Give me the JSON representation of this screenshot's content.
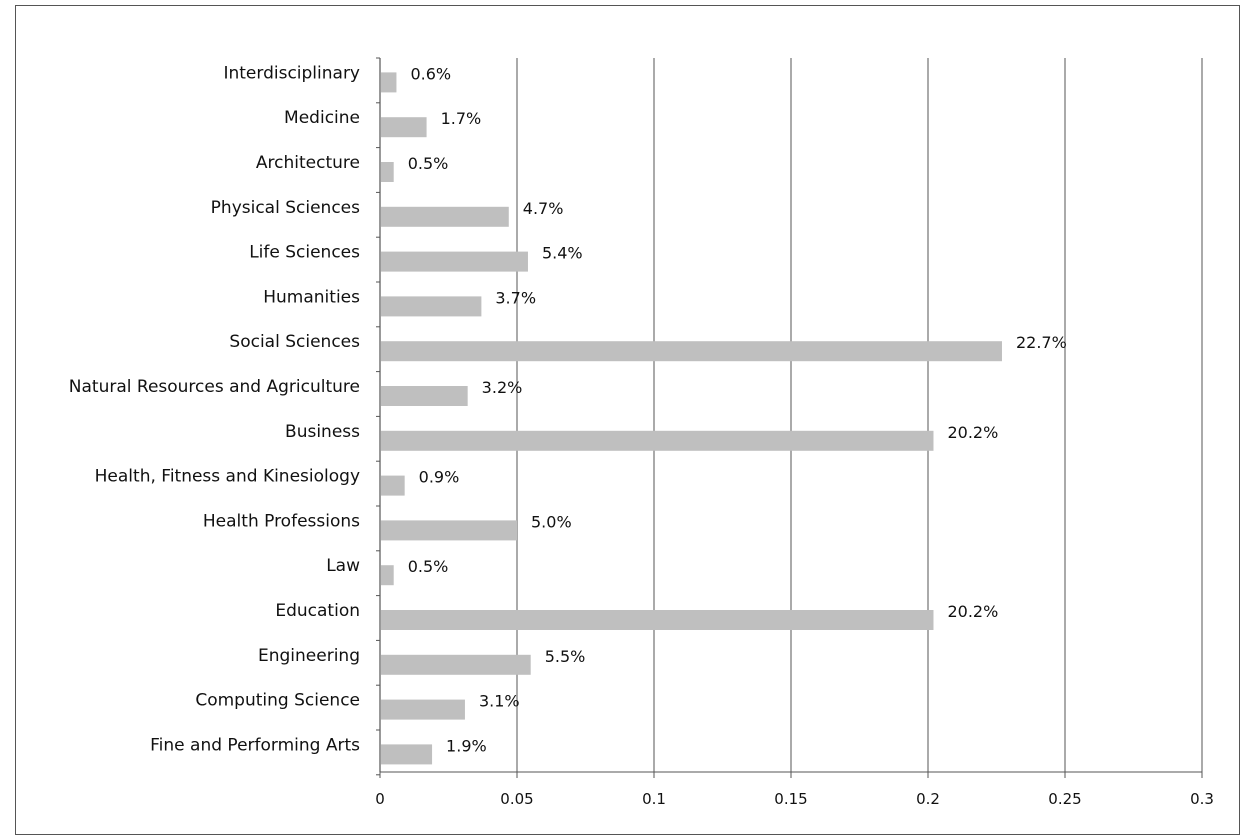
{
  "chart_data": {
    "type": "bar",
    "orientation": "horizontal",
    "title": "",
    "xlabel": "",
    "ylabel": "",
    "xlim": [
      0,
      0.3
    ],
    "x_ticks": [
      0,
      0.05,
      0.1,
      0.15,
      0.2,
      0.25,
      0.3
    ],
    "x_tick_labels": [
      "0",
      "0.05",
      "0.1",
      "0.15",
      "0.2",
      "0.25",
      "0.3"
    ],
    "grid": "vertical",
    "bar_color": "#bfbfbf",
    "categories": [
      "Interdisciplinary",
      "Medicine",
      "Architecture",
      "Physical Sciences",
      "Life Sciences",
      "Humanities",
      "Social Sciences",
      "Natural Resources and Agriculture",
      "Business",
      "Health, Fitness and Kinesiology",
      "Health Professions",
      "Law",
      "Education",
      "Engineering",
      "Computing Science",
      "Fine and Performing Arts"
    ],
    "values": [
      0.006,
      0.017,
      0.005,
      0.047,
      0.054,
      0.037,
      0.227,
      0.032,
      0.202,
      0.009,
      0.05,
      0.005,
      0.202,
      0.055,
      0.031,
      0.019
    ],
    "data_labels": [
      "0.6%",
      "1.7%",
      "0.5%",
      "4.7%",
      "5.4%",
      "3.7%",
      "22.7%",
      "3.2%",
      "20.2%",
      "0.9%",
      "5.0%",
      "0.5%",
      "20.2%",
      "5.5%",
      "3.1%",
      "1.9%"
    ]
  }
}
